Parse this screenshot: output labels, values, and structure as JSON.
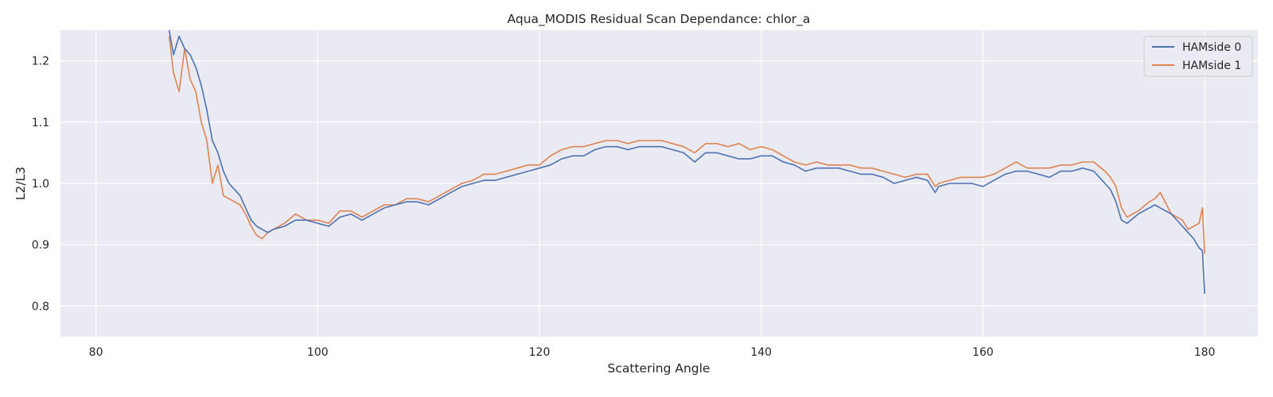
{
  "chart_data": {
    "type": "line",
    "title": "Aqua_MODIS Residual Scan Dependance: chlor_a",
    "xlabel": "Scattering Angle",
    "ylabel": "L2/L3",
    "xlim": [
      76.8,
      184.8
    ],
    "ylim": [
      0.75,
      1.25
    ],
    "xticks": [
      80,
      100,
      120,
      140,
      160,
      180
    ],
    "yticks": [
      0.8,
      0.9,
      1.0,
      1.1,
      1.2
    ],
    "xtick_labels": [
      "80",
      "100",
      "120",
      "140",
      "160",
      "180"
    ],
    "ytick_labels": [
      "0.8",
      "0.9",
      "1.0",
      "1.1",
      "1.2"
    ],
    "grid": true,
    "legend_position": "top-right",
    "series": [
      {
        "name": "HAMside 0",
        "color": "#4c72b0",
        "x": [
          86.6,
          87.0,
          87.5,
          88.0,
          88.5,
          89.0,
          89.5,
          90.0,
          90.5,
          91.0,
          91.5,
          92.0,
          92.5,
          93.0,
          93.5,
          94.0,
          94.5,
          95.0,
          95.5,
          96.0,
          97.0,
          98.0,
          99.0,
          100.0,
          101.0,
          102.0,
          103.0,
          104.0,
          105.0,
          106.0,
          107.0,
          108.0,
          109.0,
          110.0,
          111.0,
          112.0,
          113.0,
          114.0,
          115.0,
          116.0,
          117.0,
          118.0,
          119.0,
          120.0,
          121.0,
          122.0,
          123.0,
          124.0,
          125.0,
          126.0,
          127.0,
          128.0,
          129.0,
          130.0,
          131.0,
          132.0,
          133.0,
          134.0,
          135.0,
          136.0,
          137.0,
          138.0,
          139.0,
          140.0,
          141.0,
          142.0,
          143.0,
          144.0,
          145.0,
          146.0,
          147.0,
          148.0,
          149.0,
          150.0,
          151.0,
          152.0,
          153.0,
          154.0,
          155.0,
          155.7,
          156.0,
          157.0,
          158.0,
          159.0,
          160.0,
          161.0,
          162.0,
          163.0,
          164.0,
          165.0,
          166.0,
          167.0,
          168.0,
          169.0,
          170.0,
          171.0,
          171.5,
          172.0,
          172.5,
          173.0,
          174.0,
          175.0,
          175.5,
          176.0,
          177.0,
          178.0,
          178.5,
          179.0,
          179.5,
          179.8,
          180.0
        ],
        "y": [
          1.25,
          1.21,
          1.24,
          1.22,
          1.21,
          1.19,
          1.16,
          1.12,
          1.07,
          1.05,
          1.02,
          1.0,
          0.99,
          0.98,
          0.96,
          0.94,
          0.93,
          0.925,
          0.92,
          0.925,
          0.93,
          0.94,
          0.94,
          0.935,
          0.93,
          0.945,
          0.95,
          0.94,
          0.95,
          0.96,
          0.965,
          0.97,
          0.97,
          0.965,
          0.975,
          0.985,
          0.995,
          1.0,
          1.005,
          1.005,
          1.01,
          1.015,
          1.02,
          1.025,
          1.03,
          1.04,
          1.045,
          1.045,
          1.055,
          1.06,
          1.06,
          1.055,
          1.06,
          1.06,
          1.06,
          1.055,
          1.05,
          1.035,
          1.05,
          1.05,
          1.045,
          1.04,
          1.04,
          1.045,
          1.045,
          1.035,
          1.03,
          1.02,
          1.025,
          1.025,
          1.025,
          1.02,
          1.015,
          1.015,
          1.01,
          1.0,
          1.005,
          1.01,
          1.005,
          0.985,
          0.995,
          1.0,
          1.0,
          1.0,
          0.995,
          1.005,
          1.015,
          1.02,
          1.02,
          1.015,
          1.01,
          1.02,
          1.02,
          1.025,
          1.02,
          1.0,
          0.99,
          0.97,
          0.94,
          0.935,
          0.95,
          0.96,
          0.965,
          0.96,
          0.95,
          0.93,
          0.92,
          0.91,
          0.895,
          0.89,
          0.82
        ]
      },
      {
        "name": "HAMside 1",
        "color": "#dd8452",
        "x": [
          86.6,
          87.0,
          87.5,
          88.0,
          88.5,
          89.0,
          89.5,
          90.0,
          90.5,
          91.0,
          91.5,
          92.0,
          92.5,
          93.0,
          93.5,
          94.0,
          94.5,
          95.0,
          95.5,
          96.0,
          97.0,
          98.0,
          99.0,
          100.0,
          101.0,
          102.0,
          103.0,
          104.0,
          105.0,
          106.0,
          107.0,
          108.0,
          109.0,
          110.0,
          111.0,
          112.0,
          113.0,
          114.0,
          115.0,
          116.0,
          117.0,
          118.0,
          119.0,
          120.0,
          121.0,
          122.0,
          123.0,
          124.0,
          125.0,
          126.0,
          127.0,
          128.0,
          129.0,
          130.0,
          131.0,
          132.0,
          133.0,
          134.0,
          135.0,
          136.0,
          137.0,
          138.0,
          139.0,
          140.0,
          141.0,
          142.0,
          143.0,
          144.0,
          145.0,
          146.0,
          147.0,
          148.0,
          149.0,
          150.0,
          151.0,
          152.0,
          153.0,
          154.0,
          155.0,
          155.7,
          156.0,
          157.0,
          158.0,
          159.0,
          160.0,
          161.0,
          162.0,
          163.0,
          164.0,
          165.0,
          166.0,
          167.0,
          168.0,
          169.0,
          170.0,
          171.0,
          171.5,
          172.0,
          172.5,
          173.0,
          174.0,
          175.0,
          175.5,
          176.0,
          177.0,
          178.0,
          178.5,
          179.0,
          179.5,
          179.8,
          180.0
        ],
        "y": [
          1.24,
          1.18,
          1.15,
          1.22,
          1.17,
          1.15,
          1.1,
          1.07,
          1.0,
          1.03,
          0.98,
          0.975,
          0.97,
          0.965,
          0.95,
          0.93,
          0.915,
          0.91,
          0.92,
          0.925,
          0.935,
          0.95,
          0.94,
          0.94,
          0.935,
          0.955,
          0.955,
          0.945,
          0.955,
          0.965,
          0.965,
          0.975,
          0.975,
          0.97,
          0.98,
          0.99,
          1.0,
          1.005,
          1.015,
          1.015,
          1.02,
          1.025,
          1.03,
          1.03,
          1.045,
          1.055,
          1.06,
          1.06,
          1.065,
          1.07,
          1.07,
          1.065,
          1.07,
          1.07,
          1.07,
          1.065,
          1.06,
          1.05,
          1.065,
          1.065,
          1.06,
          1.065,
          1.055,
          1.06,
          1.055,
          1.045,
          1.035,
          1.03,
          1.035,
          1.03,
          1.03,
          1.03,
          1.025,
          1.025,
          1.02,
          1.015,
          1.01,
          1.015,
          1.015,
          0.995,
          1.0,
          1.005,
          1.01,
          1.01,
          1.01,
          1.015,
          1.025,
          1.035,
          1.025,
          1.025,
          1.025,
          1.03,
          1.03,
          1.035,
          1.035,
          1.02,
          1.01,
          0.995,
          0.96,
          0.945,
          0.955,
          0.97,
          0.975,
          0.985,
          0.95,
          0.94,
          0.925,
          0.93,
          0.935,
          0.96,
          0.885
        ]
      }
    ]
  }
}
